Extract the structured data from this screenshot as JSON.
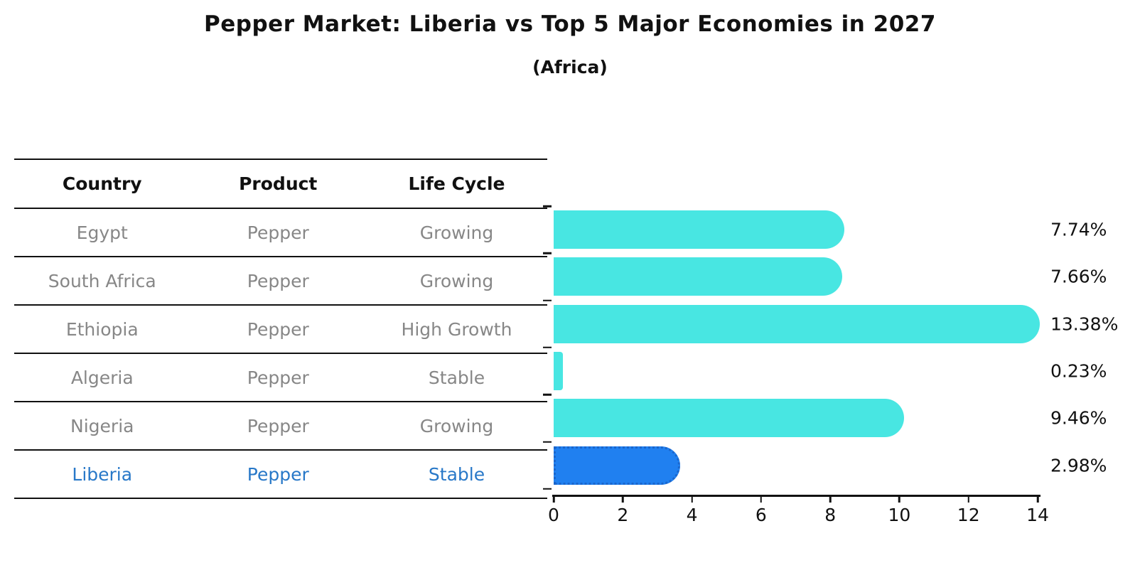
{
  "title": "Pepper Market: Liberia vs Top 5 Major Economies in 2027",
  "subtitle": "(Africa)",
  "table": {
    "headers": {
      "country": "Country",
      "product": "Product",
      "life_cycle": "Life Cycle"
    },
    "rows": [
      {
        "country": "Egypt",
        "product": "Pepper",
        "life_cycle": "Growing",
        "highlight": false
      },
      {
        "country": "South Africa",
        "product": "Pepper",
        "life_cycle": "Growing",
        "highlight": false
      },
      {
        "country": "Ethiopia",
        "product": "Pepper",
        "life_cycle": "High Growth",
        "highlight": false
      },
      {
        "country": "Algeria",
        "product": "Pepper",
        "life_cycle": "Stable",
        "highlight": false
      },
      {
        "country": "Nigeria",
        "product": "Pepper",
        "life_cycle": "Growing",
        "highlight": false
      },
      {
        "country": "Liberia",
        "product": "Pepper",
        "life_cycle": "Stable",
        "highlight": true
      }
    ]
  },
  "chart_data": {
    "type": "bar",
    "orientation": "horizontal",
    "title": "Pepper Market: Liberia vs Top 5 Major Economies in 2027",
    "subtitle": "(Africa)",
    "categories": [
      "Egypt",
      "South Africa",
      "Ethiopia",
      "Algeria",
      "Nigeria",
      "Liberia"
    ],
    "values": [
      7.74,
      7.66,
      13.38,
      0.23,
      9.46,
      2.98
    ],
    "value_labels": [
      "7.74%",
      "7.66%",
      "13.38%",
      "0.23%",
      "9.46%",
      "2.98%"
    ],
    "xlim": [
      0,
      14
    ],
    "xticks": [
      0,
      2,
      4,
      6,
      8,
      10,
      12,
      14
    ],
    "xlabel": "",
    "ylabel": "",
    "grid": false,
    "legend": "none",
    "bar_color": "#48E6E2",
    "highlight_color": "#2080F0",
    "highlight_border_color": "#1a66cc",
    "highlight_index": 5,
    "highlight_text_color": "#2878C8",
    "axis_color": "#111111",
    "table_text_color": "#878787"
  }
}
